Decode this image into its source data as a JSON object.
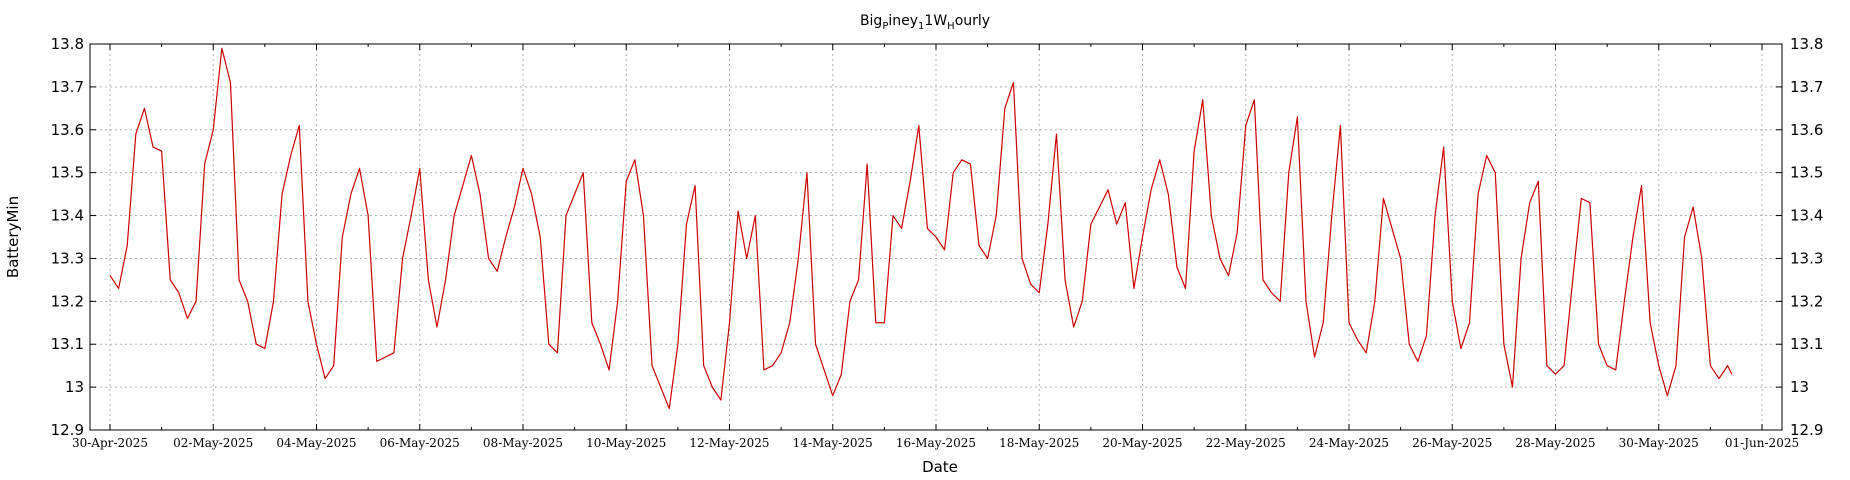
{
  "chart_data": {
    "type": "line",
    "title_parts": [
      "Big",
      "P",
      "iney",
      "1",
      "1W",
      "H",
      "ourly"
    ],
    "xlabel": "Date",
    "ylabel": "BatteryMin",
    "ylim": [
      12.9,
      13.8
    ],
    "y_ticks": [
      "12.9",
      "13",
      "13.1",
      "13.2",
      "13.3",
      "13.4",
      "13.5",
      "13.6",
      "13.7",
      "13.8"
    ],
    "x_ticks": [
      "30-Apr-2025",
      "02-May-2025",
      "04-May-2025",
      "06-May-2025",
      "08-May-2025",
      "10-May-2025",
      "12-May-2025",
      "14-May-2025",
      "16-May-2025",
      "18-May-2025",
      "20-May-2025",
      "22-May-2025",
      "24-May-2025",
      "26-May-2025",
      "28-May-2025",
      "30-May-2025",
      "01-Jun-2025"
    ],
    "grid": true,
    "line_color": "#cc0000",
    "series": [
      {
        "points": [
          [
            "30-Apr-2025 00:00",
            13.26
          ],
          [
            "30-Apr-2025 04:00",
            13.23
          ],
          [
            "30-Apr-2025 08:00",
            13.33
          ],
          [
            "30-Apr-2025 12:00",
            13.59
          ],
          [
            "30-Apr-2025 16:00",
            13.65
          ],
          [
            "30-Apr-2025 20:00",
            13.56
          ],
          [
            "01-May-2025 00:00",
            13.55
          ],
          [
            "01-May-2025 04:00",
            13.25
          ],
          [
            "01-May-2025 08:00",
            13.22
          ],
          [
            "01-May-2025 12:00",
            13.16
          ],
          [
            "01-May-2025 16:00",
            13.2
          ],
          [
            "01-May-2025 20:00",
            13.52
          ],
          [
            "02-May-2025 00:00",
            13.6
          ],
          [
            "02-May-2025 04:00",
            13.79
          ],
          [
            "02-May-2025 08:00",
            13.71
          ],
          [
            "02-May-2025 12:00",
            13.25
          ],
          [
            "02-May-2025 16:00",
            13.2
          ],
          [
            "02-May-2025 20:00",
            13.1
          ],
          [
            "03-May-2025 00:00",
            13.09
          ],
          [
            "03-May-2025 04:00",
            13.2
          ],
          [
            "03-May-2025 08:00",
            13.45
          ],
          [
            "03-May-2025 12:00",
            13.54
          ],
          [
            "03-May-2025 16:00",
            13.61
          ],
          [
            "03-May-2025 20:00",
            13.2
          ],
          [
            "04-May-2025 00:00",
            13.1
          ],
          [
            "04-May-2025 04:00",
            13.02
          ],
          [
            "04-May-2025 08:00",
            13.05
          ],
          [
            "04-May-2025 12:00",
            13.35
          ],
          [
            "04-May-2025 16:00",
            13.45
          ],
          [
            "04-May-2025 20:00",
            13.51
          ],
          [
            "05-May-2025 00:00",
            13.4
          ],
          [
            "05-May-2025 04:00",
            13.06
          ],
          [
            "05-May-2025 08:00",
            13.07
          ],
          [
            "05-May-2025 12:00",
            13.08
          ],
          [
            "05-May-2025 16:00",
            13.3
          ],
          [
            "05-May-2025 20:00",
            13.4
          ],
          [
            "06-May-2025 00:00",
            13.51
          ],
          [
            "06-May-2025 04:00",
            13.25
          ],
          [
            "06-May-2025 08:00",
            13.14
          ],
          [
            "06-May-2025 12:00",
            13.25
          ],
          [
            "06-May-2025 16:00",
            13.4
          ],
          [
            "06-May-2025 20:00",
            13.47
          ],
          [
            "07-May-2025 00:00",
            13.54
          ],
          [
            "07-May-2025 04:00",
            13.45
          ],
          [
            "07-May-2025 08:00",
            13.3
          ],
          [
            "07-May-2025 12:00",
            13.27
          ],
          [
            "07-May-2025 16:00",
            13.35
          ],
          [
            "07-May-2025 20:00",
            13.42
          ],
          [
            "08-May-2025 00:00",
            13.51
          ],
          [
            "08-May-2025 04:00",
            13.45
          ],
          [
            "08-May-2025 08:00",
            13.35
          ],
          [
            "08-May-2025 12:00",
            13.1
          ],
          [
            "08-May-2025 16:00",
            13.08
          ],
          [
            "08-May-2025 20:00",
            13.4
          ],
          [
            "09-May-2025 00:00",
            13.45
          ],
          [
            "09-May-2025 04:00",
            13.5
          ],
          [
            "09-May-2025 08:00",
            13.15
          ],
          [
            "09-May-2025 12:00",
            13.1
          ],
          [
            "09-May-2025 16:00",
            13.04
          ],
          [
            "09-May-2025 20:00",
            13.2
          ],
          [
            "10-May-2025 00:00",
            13.48
          ],
          [
            "10-May-2025 04:00",
            13.53
          ],
          [
            "10-May-2025 08:00",
            13.4
          ],
          [
            "10-May-2025 12:00",
            13.05
          ],
          [
            "10-May-2025 16:00",
            13.0
          ],
          [
            "10-May-2025 20:00",
            12.95
          ],
          [
            "11-May-2025 00:00",
            13.1
          ],
          [
            "11-May-2025 04:00",
            13.38
          ],
          [
            "11-May-2025 08:00",
            13.47
          ],
          [
            "11-May-2025 12:00",
            13.05
          ],
          [
            "11-May-2025 16:00",
            13.0
          ],
          [
            "11-May-2025 20:00",
            12.97
          ],
          [
            "12-May-2025 00:00",
            13.15
          ],
          [
            "12-May-2025 04:00",
            13.41
          ],
          [
            "12-May-2025 08:00",
            13.3
          ],
          [
            "12-May-2025 12:00",
            13.4
          ],
          [
            "12-May-2025 16:00",
            13.04
          ],
          [
            "12-May-2025 20:00",
            13.05
          ],
          [
            "13-May-2025 00:00",
            13.08
          ],
          [
            "13-May-2025 04:00",
            13.15
          ],
          [
            "13-May-2025 08:00",
            13.3
          ],
          [
            "13-May-2025 12:00",
            13.5
          ],
          [
            "13-May-2025 16:00",
            13.1
          ],
          [
            "13-May-2025 20:00",
            13.04
          ],
          [
            "14-May-2025 00:00",
            12.98
          ],
          [
            "14-May-2025 04:00",
            13.03
          ],
          [
            "14-May-2025 08:00",
            13.2
          ],
          [
            "14-May-2025 12:00",
            13.25
          ],
          [
            "14-May-2025 16:00",
            13.52
          ],
          [
            "14-May-2025 20:00",
            13.15
          ],
          [
            "15-May-2025 00:00",
            13.15
          ],
          [
            "15-May-2025 04:00",
            13.4
          ],
          [
            "15-May-2025 08:00",
            13.37
          ],
          [
            "15-May-2025 12:00",
            13.48
          ],
          [
            "15-May-2025 16:00",
            13.61
          ],
          [
            "15-May-2025 20:00",
            13.37
          ],
          [
            "16-May-2025 00:00",
            13.35
          ],
          [
            "16-May-2025 04:00",
            13.32
          ],
          [
            "16-May-2025 08:00",
            13.5
          ],
          [
            "16-May-2025 12:00",
            13.53
          ],
          [
            "16-May-2025 16:00",
            13.52
          ],
          [
            "16-May-2025 20:00",
            13.33
          ],
          [
            "17-May-2025 00:00",
            13.3
          ],
          [
            "17-May-2025 04:00",
            13.4
          ],
          [
            "17-May-2025 08:00",
            13.65
          ],
          [
            "17-May-2025 12:00",
            13.71
          ],
          [
            "17-May-2025 16:00",
            13.3
          ],
          [
            "17-May-2025 20:00",
            13.24
          ],
          [
            "18-May-2025 00:00",
            13.22
          ],
          [
            "18-May-2025 04:00",
            13.38
          ],
          [
            "18-May-2025 08:00",
            13.59
          ],
          [
            "18-May-2025 12:00",
            13.25
          ],
          [
            "18-May-2025 16:00",
            13.14
          ],
          [
            "18-May-2025 20:00",
            13.2
          ],
          [
            "19-May-2025 00:00",
            13.38
          ],
          [
            "19-May-2025 04:00",
            13.42
          ],
          [
            "19-May-2025 08:00",
            13.46
          ],
          [
            "19-May-2025 12:00",
            13.38
          ],
          [
            "19-May-2025 16:00",
            13.43
          ],
          [
            "19-May-2025 20:00",
            13.23
          ],
          [
            "20-May-2025 00:00",
            13.35
          ],
          [
            "20-May-2025 04:00",
            13.46
          ],
          [
            "20-May-2025 08:00",
            13.53
          ],
          [
            "20-May-2025 12:00",
            13.45
          ],
          [
            "20-May-2025 16:00",
            13.28
          ],
          [
            "20-May-2025 20:00",
            13.23
          ],
          [
            "21-May-2025 00:00",
            13.55
          ],
          [
            "21-May-2025 04:00",
            13.67
          ],
          [
            "21-May-2025 08:00",
            13.4
          ],
          [
            "21-May-2025 12:00",
            13.3
          ],
          [
            "21-May-2025 16:00",
            13.26
          ],
          [
            "21-May-2025 20:00",
            13.36
          ],
          [
            "22-May-2025 00:00",
            13.61
          ],
          [
            "22-May-2025 04:00",
            13.67
          ],
          [
            "22-May-2025 08:00",
            13.25
          ],
          [
            "22-May-2025 12:00",
            13.22
          ],
          [
            "22-May-2025 16:00",
            13.2
          ],
          [
            "22-May-2025 20:00",
            13.5
          ],
          [
            "23-May-2025 00:00",
            13.63
          ],
          [
            "23-May-2025 04:00",
            13.2
          ],
          [
            "23-May-2025 08:00",
            13.07
          ],
          [
            "23-May-2025 12:00",
            13.15
          ],
          [
            "23-May-2025 16:00",
            13.4
          ],
          [
            "23-May-2025 20:00",
            13.61
          ],
          [
            "24-May-2025 00:00",
            13.15
          ],
          [
            "24-May-2025 04:00",
            13.11
          ],
          [
            "24-May-2025 08:00",
            13.08
          ],
          [
            "24-May-2025 12:00",
            13.2
          ],
          [
            "24-May-2025 16:00",
            13.44
          ],
          [
            "24-May-2025 20:00",
            13.37
          ],
          [
            "25-May-2025 00:00",
            13.3
          ],
          [
            "25-May-2025 04:00",
            13.1
          ],
          [
            "25-May-2025 08:00",
            13.06
          ],
          [
            "25-May-2025 12:00",
            13.12
          ],
          [
            "25-May-2025 16:00",
            13.4
          ],
          [
            "25-May-2025 20:00",
            13.56
          ],
          [
            "26-May-2025 00:00",
            13.2
          ],
          [
            "26-May-2025 04:00",
            13.09
          ],
          [
            "26-May-2025 08:00",
            13.15
          ],
          [
            "26-May-2025 12:00",
            13.45
          ],
          [
            "26-May-2025 16:00",
            13.54
          ],
          [
            "26-May-2025 20:00",
            13.5
          ],
          [
            "27-May-2025 00:00",
            13.1
          ],
          [
            "27-May-2025 04:00",
            13.0
          ],
          [
            "27-May-2025 08:00",
            13.3
          ],
          [
            "27-May-2025 12:00",
            13.43
          ],
          [
            "27-May-2025 16:00",
            13.48
          ],
          [
            "27-May-2025 20:00",
            13.05
          ],
          [
            "28-May-2025 00:00",
            13.03
          ],
          [
            "28-May-2025 04:00",
            13.05
          ],
          [
            "28-May-2025 08:00",
            13.25
          ],
          [
            "28-May-2025 12:00",
            13.44
          ],
          [
            "28-May-2025 16:00",
            13.43
          ],
          [
            "28-May-2025 20:00",
            13.1
          ],
          [
            "29-May-2025 00:00",
            13.05
          ],
          [
            "29-May-2025 04:00",
            13.04
          ],
          [
            "29-May-2025 08:00",
            13.2
          ],
          [
            "29-May-2025 12:00",
            13.35
          ],
          [
            "29-May-2025 16:00",
            13.47
          ],
          [
            "29-May-2025 20:00",
            13.15
          ],
          [
            "30-May-2025 00:00",
            13.05
          ],
          [
            "30-May-2025 04:00",
            12.98
          ],
          [
            "30-May-2025 08:00",
            13.05
          ],
          [
            "30-May-2025 12:00",
            13.35
          ],
          [
            "30-May-2025 16:00",
            13.42
          ],
          [
            "30-May-2025 20:00",
            13.3
          ],
          [
            "31-May-2025 00:00",
            13.05
          ],
          [
            "31-May-2025 04:00",
            13.02
          ],
          [
            "31-May-2025 08:00",
            13.05
          ],
          [
            "31-May-2025 10:00",
            13.03
          ]
        ]
      }
    ]
  }
}
